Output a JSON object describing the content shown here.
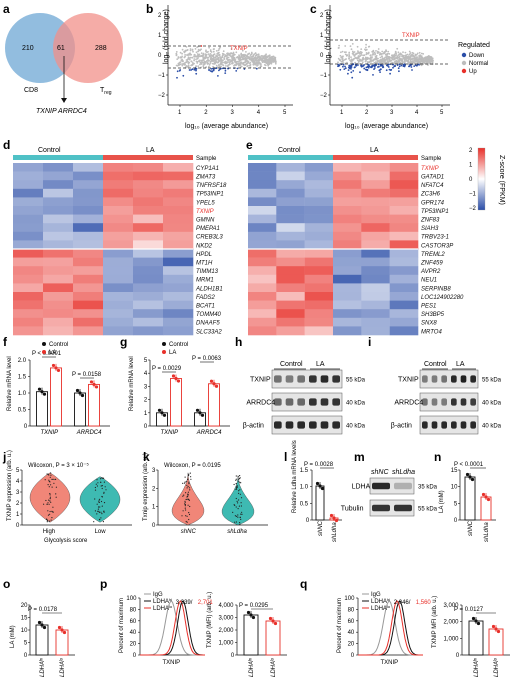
{
  "panel_labels": [
    "a",
    "b",
    "c",
    "d",
    "e",
    "f",
    "g",
    "h",
    "i",
    "j",
    "k",
    "l",
    "m",
    "n",
    "o",
    "p",
    "q"
  ],
  "venn": {
    "left_label": "CD8",
    "right_label": "T",
    "right_label_sub": "reg",
    "left_only": "210",
    "overlap": "61",
    "right_only": "288",
    "genes_label": "TXNIP ARRDC4",
    "colors": {
      "left": "#7fb2d9",
      "right": "#f2908a"
    }
  },
  "ma_plots": {
    "ylabel_b": "log₂ (fold change)",
    "ylabel_c": "log₂ (fold change)",
    "xlabel_b": "log₁₀ (average abundance)",
    "xlabel_c": "log₁₀ (average abundance)",
    "xticks": [
      "1",
      "2",
      "3",
      "4",
      "5"
    ],
    "yticks": [
      "−2",
      "−1",
      "0",
      "1",
      "2"
    ],
    "label_b": "TXNIP",
    "label_c": "TXNIP",
    "legend_title": "Regulated",
    "legend": [
      {
        "name": "Down",
        "color": "#2b4ea8"
      },
      {
        "name": "Normal",
        "color": "#bdbdbd"
      },
      {
        "name": "Up",
        "color": "#e8302a"
      }
    ]
  },
  "heatmap_d": {
    "groups": [
      "Control",
      "LA"
    ],
    "sample_label": "Sample",
    "genes": [
      "CYP1A1",
      "ZMAT3",
      "TNFRSF18",
      "TP53INP1",
      "YPEL5",
      "TXNIP",
      "GMNN",
      "PMEPA1",
      "CREB3L3",
      "NKD2",
      "HPDL",
      "MT1H",
      "TIMM13",
      "MRM1",
      "ALDH1B1",
      "FADS2",
      "BCAT1",
      "TOMM40",
      "DNAAF5",
      "SLC33A2"
    ]
  },
  "heatmap_e": {
    "groups": [
      "Control",
      "LA"
    ],
    "sample_label": "Sample",
    "genes": [
      "TXNIP",
      "GATAD1",
      "NFATC4",
      "ZC3H6",
      "GPR174",
      "TP53INP1",
      "ZNF83",
      "SIAH3",
      "TRBV23-1",
      "CASTOR3P",
      "TREML2",
      "ZNF459",
      "AVPR2",
      "NEU1",
      "SERPINB8",
      "LOC124902280",
      "PES1",
      "SH3BP5",
      "SNX8",
      "MRTO4"
    ],
    "colorbar_label": "Z-score (FPKM)",
    "colorbar_ticks": [
      "2",
      "1",
      "0",
      "−1",
      "−2"
    ]
  },
  "bar_f": {
    "legend": [
      "Control",
      "LA"
    ],
    "ylabel": "Relative mRNA level",
    "yticks": [
      "0",
      "0.5",
      "1.0",
      "1.5",
      "2.0"
    ],
    "categories": [
      "TXNIP",
      "ARRDC4"
    ],
    "pvalues": [
      "P < 0.0001",
      "P = 0.0158"
    ]
  },
  "bar_g": {
    "legend": [
      "Control",
      "LA"
    ],
    "ylabel": "Relative mRNA level",
    "yticks": [
      "0",
      "1",
      "2",
      "3",
      "4",
      "5"
    ],
    "categories": [
      "TXNIP",
      "ARRDC4"
    ],
    "pvalues": [
      "P = 0.0029",
      "P = 0.0063"
    ]
  },
  "blot_h": {
    "groups": [
      "Control",
      "LA"
    ],
    "rows": [
      "TXNIP",
      "ARRDC4",
      "β-actin"
    ],
    "kda": [
      "55 kDa",
      "40 kDa",
      "40 kDa"
    ]
  },
  "blot_i": {
    "groups": [
      "Control",
      "LA"
    ],
    "rows": [
      "TXNIP",
      "ARRDC4",
      "β-actin"
    ],
    "kda": [
      "55 kDa",
      "40 kDa",
      "40 kDa"
    ]
  },
  "violin_j": {
    "title": "Wilcoxon, P = 3 × 10⁻⁵",
    "ylabel": "TXNIP expression (arb. u.)",
    "yticks": [
      "0",
      "1",
      "2",
      "3",
      "4",
      "5"
    ],
    "categories": [
      "High",
      "Low"
    ],
    "xlabel": "Glycolysis score"
  },
  "violin_k": {
    "title": "Wilcoxon, P = 0.0195",
    "ylabel": "Txnip expression (arb. u.)",
    "yticks": [
      "0",
      "1",
      "2",
      "3"
    ],
    "categories": [
      "shNC",
      "shLdha"
    ]
  },
  "bar_l": {
    "ylabel": "Relative Ldha mRNA levels",
    "yticks": [
      "0",
      "0.5",
      "1.0",
      "1.5"
    ],
    "pvalue": "P = 0.0028",
    "categories": [
      "shNC",
      "shLdha"
    ]
  },
  "blot_m": {
    "groups": [
      "shNC",
      "shLdha"
    ],
    "rows": [
      "LDHA",
      "Tubulin"
    ],
    "kda": [
      "35 kDa",
      "55 kDa"
    ]
  },
  "bar_n": {
    "ylabel": "LA (mM)",
    "yticks": [
      "0",
      "5",
      "10",
      "15"
    ],
    "pvalue": "P < 0.0001",
    "categories": [
      "shNC",
      "shLdha"
    ]
  },
  "bar_o": {
    "ylabel": "LA (mM)",
    "yticks": [
      "0",
      "5",
      "10",
      "15",
      "20"
    ],
    "pvalue": "P = 0.0178",
    "categories": [
      "LDHAʰᶦ",
      "LDHAˡᵒ"
    ]
  },
  "hist_p": {
    "legend": [
      "IgG",
      "LDHA",
      "LDHA"
    ],
    "legend_sup": [
      "",
      "hi",
      "lo"
    ],
    "values": [
      "3,339/",
      "2,701"
    ],
    "ylabel": "Percent of maximum",
    "xlabel": "TXNIP",
    "yticks": [
      "0",
      "20",
      "40",
      "60",
      "80",
      "100"
    ]
  },
  "bar_p": {
    "ylabel": "TXNIP (MFI) (arb. u.)",
    "yticks": [
      "0",
      "1,000",
      "2,000",
      "3,000",
      "4,000"
    ],
    "pvalue": "P = 0.0295",
    "categories": [
      "LDHAʰᶦ",
      "LDHAˡᵒ"
    ]
  },
  "hist_q": {
    "legend": [
      "IgG",
      "LDHA",
      "LDHA"
    ],
    "legend_sup": [
      "",
      "hi",
      "lo"
    ],
    "values": [
      "2,046/",
      "1,560"
    ],
    "ylabel": "Percent of maximum",
    "xlabel": "TXNIP",
    "yticks": [
      "0",
      "20",
      "40",
      "60",
      "80",
      "100"
    ]
  },
  "bar_q": {
    "ylabel": "TXNIP MFI (arb. u.)",
    "yticks": [
      "0",
      "1,000",
      "2,000",
      "3,000"
    ],
    "pvalue": "P = 0.0127",
    "categories": [
      "LDHAʰᶦ",
      "LDHAˡᵒ"
    ]
  }
}
